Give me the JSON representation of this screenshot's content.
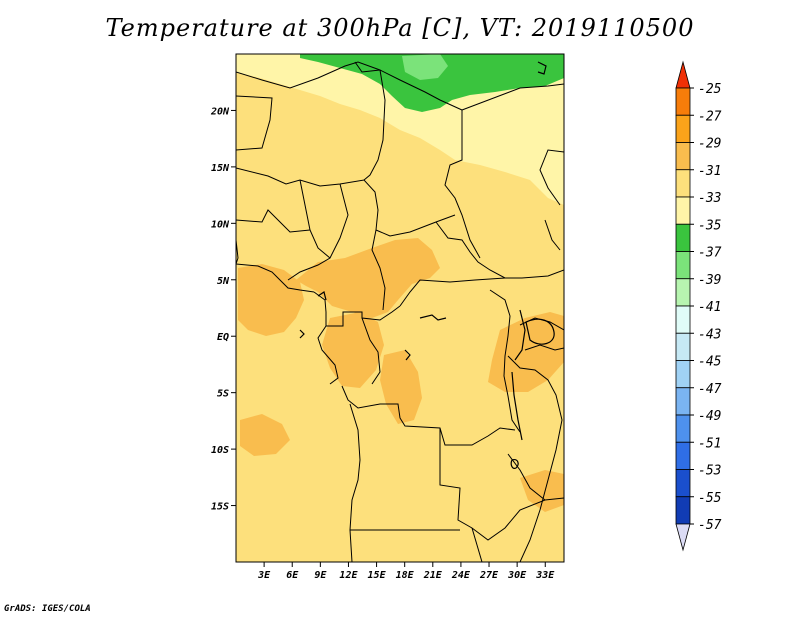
{
  "title": "Temperature at 300hPa [C], VT: 2019110500",
  "credit": "GrADS: IGES/COLA",
  "map": {
    "lon_min": 0,
    "lon_max": 35,
    "lat_min": -20,
    "lat_max": 25,
    "x_ticks": [
      {
        "lon": 3,
        "label": "3E"
      },
      {
        "lon": 6,
        "label": "6E"
      },
      {
        "lon": 9,
        "label": "9E"
      },
      {
        "lon": 12,
        "label": "12E"
      },
      {
        "lon": 15,
        "label": "15E"
      },
      {
        "lon": 18,
        "label": "18E"
      },
      {
        "lon": 21,
        "label": "21E"
      },
      {
        "lon": 24,
        "label": "24E"
      },
      {
        "lon": 27,
        "label": "27E"
      },
      {
        "lon": 30,
        "label": "30E"
      },
      {
        "lon": 33,
        "label": "33E"
      }
    ],
    "y_ticks": [
      {
        "lat": 20,
        "label": "20N"
      },
      {
        "lat": 15,
        "label": "15N"
      },
      {
        "lat": 10,
        "label": "10N"
      },
      {
        "lat": 5,
        "label": "5N"
      },
      {
        "lat": 0,
        "label": "EQ"
      },
      {
        "lat": -5,
        "label": "5S"
      },
      {
        "lat": -10,
        "label": "10S"
      },
      {
        "lat": -15,
        "label": "15S"
      }
    ],
    "colors": {
      "c31_33": "#fde07c",
      "c33_35": "#fff5a8",
      "c29_31": "#f9bd4e",
      "c35_37": "#3ac43e",
      "c37_39": "#7be37a",
      "border": "#000000"
    }
  },
  "colorbar": {
    "levels": [
      "-25",
      "-27",
      "-29",
      "-31",
      "-33",
      "-35",
      "-37",
      "-39",
      "-41",
      "-43",
      "-45",
      "-47",
      "-49",
      "-51",
      "-53",
      "-55",
      "-57"
    ],
    "colors": [
      "#f03f06",
      "#f77d0a",
      "#fba31a",
      "#f9bd4e",
      "#fde07c",
      "#fff5a8",
      "#3ac43e",
      "#7be37a",
      "#b7f5b0",
      "#e0fcf8",
      "#c6e9f5",
      "#a0d2f5",
      "#7ab4f2",
      "#4e91ed",
      "#2f6ee6",
      "#1a4fcd",
      "#113cb4",
      "#06106e"
    ],
    "top_arrow_color": "#f03006",
    "bottom_arrow_color": "#dcdcf5"
  }
}
